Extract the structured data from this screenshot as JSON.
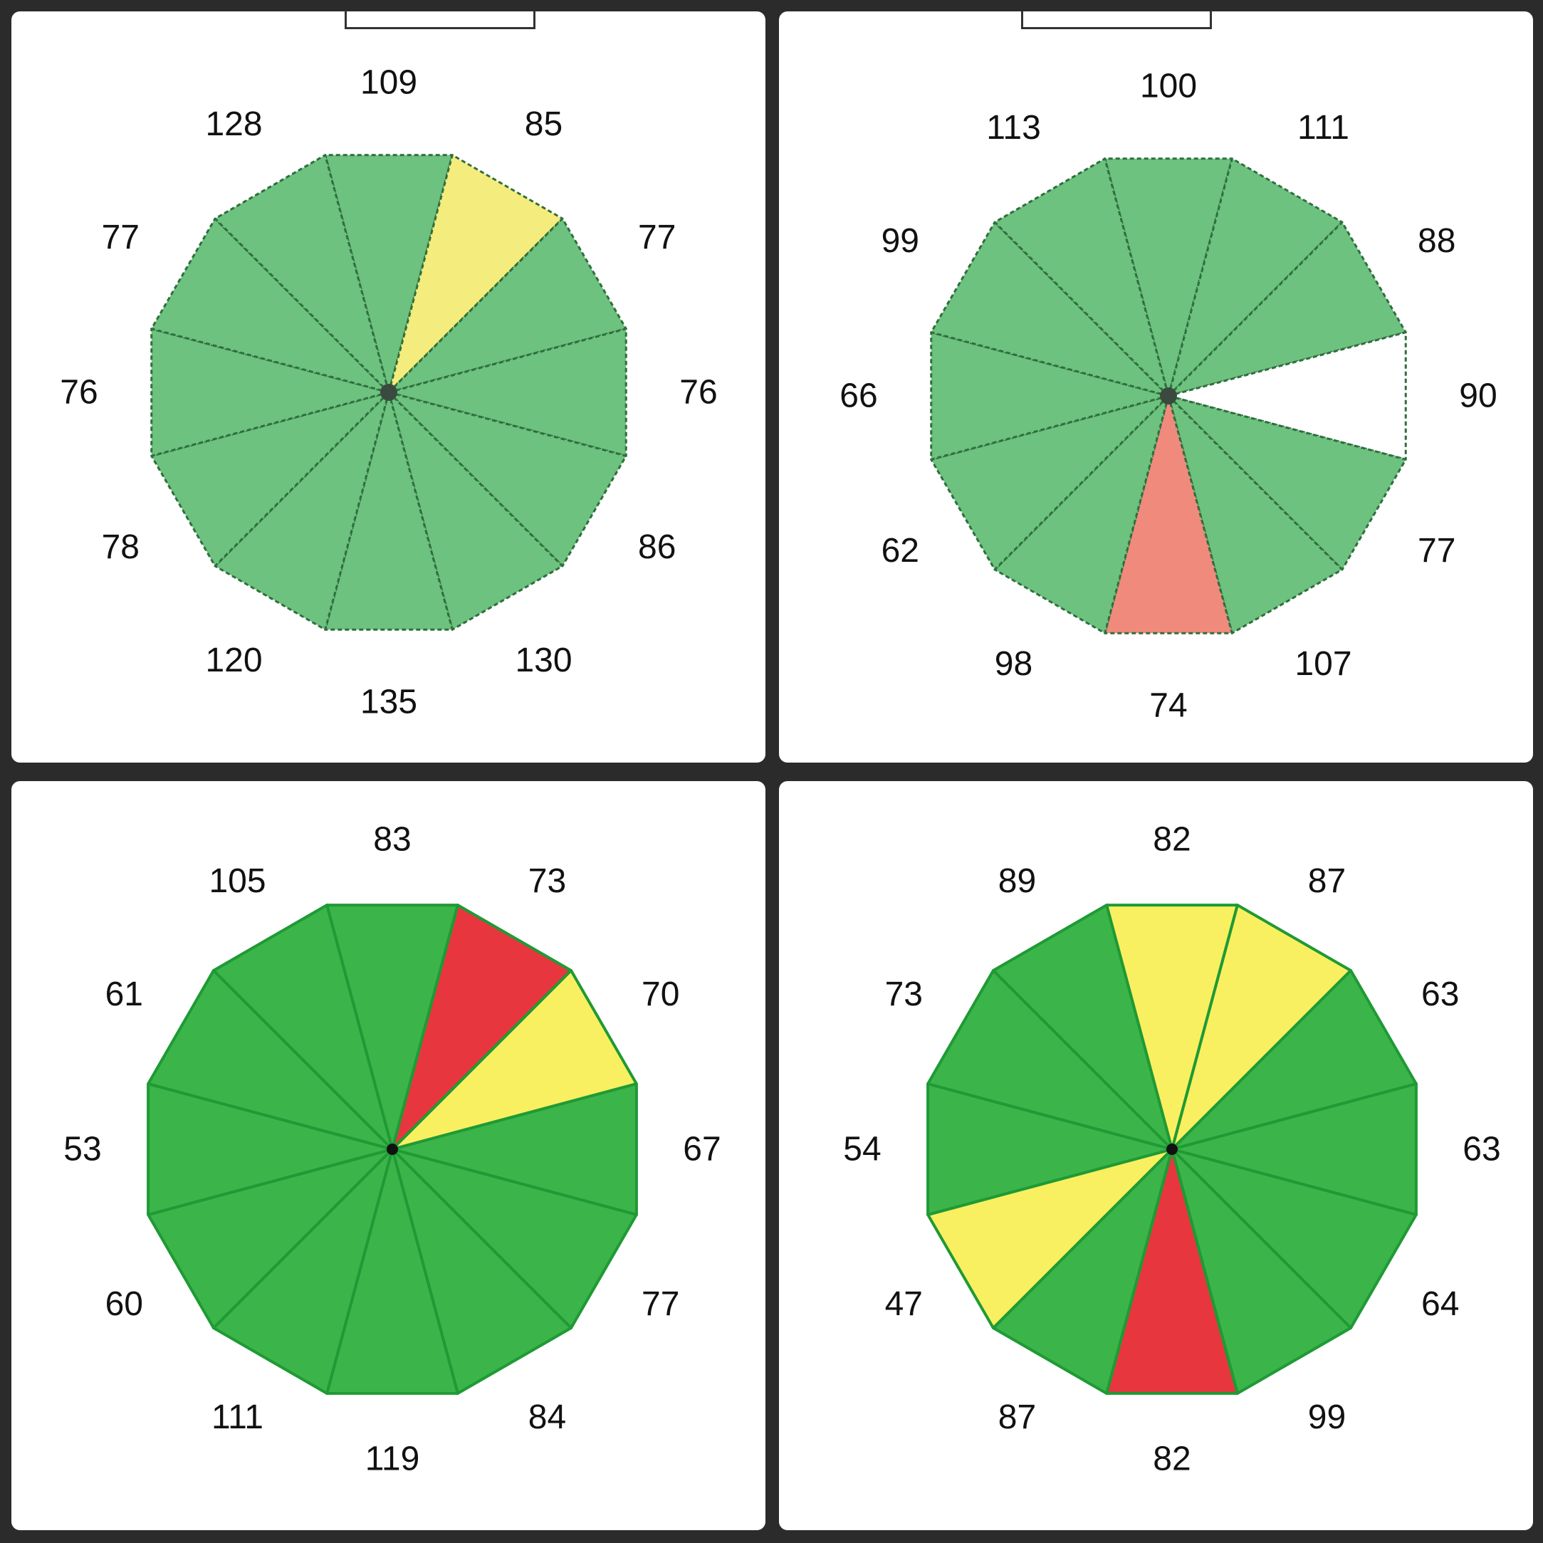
{
  "colors": {
    "green_soft": "#6cc27e",
    "green_bright": "#3bb54a",
    "yellow_soft": "#f4ec7c",
    "yellow_bright": "#f8f060",
    "red_soft": "#f08a7c",
    "red_bright": "#e8363e",
    "white": "#ffffff"
  },
  "chart_data": [
    {
      "type": "pie",
      "segments": 12,
      "values": [
        109,
        85,
        77,
        76,
        86,
        130,
        135,
        120,
        78,
        76,
        77,
        128
      ],
      "segment_colors": [
        "green_soft",
        "yellow_soft",
        "green_soft",
        "green_soft",
        "green_soft",
        "green_soft",
        "green_soft",
        "green_soft",
        "green_soft",
        "green_soft",
        "green_soft",
        "green_soft"
      ],
      "style": "soft"
    },
    {
      "type": "pie",
      "segments": 12,
      "values": [
        100,
        111,
        88,
        90,
        77,
        107,
        74,
        98,
        62,
        66,
        99,
        113
      ],
      "segment_colors": [
        "green_soft",
        "green_soft",
        "green_soft",
        "white",
        "green_soft",
        "green_soft",
        "red_soft",
        "green_soft",
        "green_soft",
        "green_soft",
        "green_soft",
        "green_soft"
      ],
      "style": "soft"
    },
    {
      "type": "pie",
      "segments": 12,
      "values": [
        83,
        73,
        70,
        67,
        77,
        84,
        119,
        111,
        60,
        53,
        61,
        105
      ],
      "segment_colors": [
        "green_bright",
        "red_bright",
        "yellow_bright",
        "green_bright",
        "green_bright",
        "green_bright",
        "green_bright",
        "green_bright",
        "green_bright",
        "green_bright",
        "green_bright",
        "green_bright"
      ],
      "style": "bright"
    },
    {
      "type": "pie",
      "segments": 12,
      "values": [
        82,
        87,
        63,
        63,
        64,
        99,
        82,
        87,
        47,
        54,
        73,
        89
      ],
      "segment_colors": [
        "yellow_bright",
        "yellow_bright",
        "green_bright",
        "green_bright",
        "green_bright",
        "green_bright",
        "red_bright",
        "green_bright",
        "yellow_bright",
        "green_bright",
        "green_bright",
        "green_bright"
      ],
      "style": "bright"
    }
  ]
}
